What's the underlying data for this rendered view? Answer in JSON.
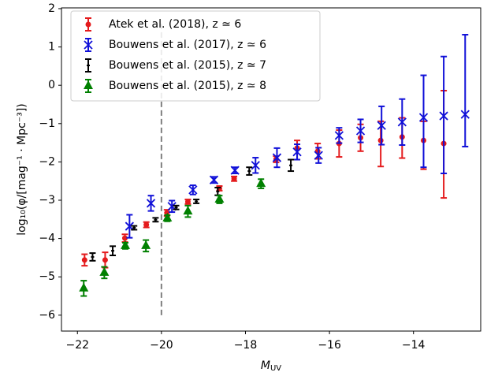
{
  "chart_data": {
    "type": "errorbar",
    "x_label": {
      "main": "M",
      "sub": "UV"
    },
    "y_label": "log₁₀(φ/[mag⁻¹ · Mpc⁻³])",
    "xlim": [
      -22.38,
      -12.4
    ],
    "ylim": [
      -6.415,
      2.02
    ],
    "xticks": [
      {
        "value": -22,
        "label": "−22"
      },
      {
        "value": -20,
        "label": "−20"
      },
      {
        "value": -18,
        "label": "−18"
      },
      {
        "value": -16,
        "label": "−16"
      },
      {
        "value": -14,
        "label": "−14"
      }
    ],
    "yticks": [
      {
        "value": -6,
        "label": "−6"
      },
      {
        "value": -5,
        "label": "−5"
      },
      {
        "value": -4,
        "label": "−4"
      },
      {
        "value": -3,
        "label": "−3"
      },
      {
        "value": -2,
        "label": "−2"
      },
      {
        "value": -1,
        "label": "−1"
      },
      0,
      1,
      2
    ],
    "vline": {
      "x": -20,
      "y": [
        -6,
        1.6
      ],
      "color": "#808080"
    },
    "legend": "upper left",
    "series": [
      {
        "name": "Atek et al. (2018), z ≃ 6",
        "color": "#e41a1c",
        "marker": "circle",
        "x": [
          -21.83,
          -21.34,
          -20.87,
          -20.36,
          -19.87,
          -19.37,
          -18.62,
          -18.27,
          -17.27,
          -16.77,
          -16.28,
          -15.77,
          -15.26,
          -14.78,
          -14.27,
          -13.76,
          -13.28
        ],
        "values": [
          -4.56,
          -4.56,
          -3.99,
          -3.64,
          -3.33,
          -3.04,
          -2.69,
          -2.44,
          -1.93,
          -1.64,
          -1.72,
          -1.52,
          -1.37,
          -1.44,
          -1.35,
          -1.44,
          -1.52
        ],
        "err_low": [
          0.15,
          0.2,
          0.1,
          0.07,
          0.08,
          0.06,
          0.06,
          0.06,
          0.08,
          0.3,
          0.2,
          0.35,
          0.35,
          0.68,
          0.55,
          0.75,
          1.42
        ],
        "err_high": [
          0.15,
          0.2,
          0.1,
          0.07,
          0.08,
          0.06,
          0.06,
          0.06,
          0.08,
          0.2,
          0.2,
          0.35,
          0.35,
          0.5,
          0.5,
          0.5,
          1.38
        ]
      },
      {
        "name": "Bouwens et al. (2017), z ≃ 6",
        "color": "#1010d8",
        "marker": "x",
        "x": [
          -20.76,
          -20.25,
          -19.75,
          -19.25,
          -18.75,
          -18.25,
          -17.76,
          -17.25,
          -16.77,
          -16.26,
          -15.77,
          -15.26,
          -14.76,
          -14.27,
          -13.76,
          -13.28,
          -12.77
        ],
        "values": [
          -3.68,
          -3.08,
          -3.16,
          -2.73,
          -2.47,
          -2.22,
          -2.09,
          -1.89,
          -1.74,
          -1.83,
          -1.31,
          -1.19,
          -1.05,
          -0.96,
          -0.84,
          -0.8,
          -0.76
        ],
        "err_low": [
          0.3,
          0.2,
          0.15,
          0.12,
          0.08,
          0.08,
          0.2,
          0.25,
          0.2,
          0.2,
          0.2,
          0.3,
          0.5,
          0.6,
          1.3,
          1.5,
          0.84
        ],
        "err_high": [
          0.3,
          0.2,
          0.15,
          0.12,
          0.08,
          0.08,
          0.2,
          0.25,
          0.2,
          0.2,
          0.2,
          0.3,
          0.5,
          0.6,
          1.1,
          1.55,
          2.08
        ]
      },
      {
        "name": "Bouwens et al. (2015), z ≃ 7",
        "color": "#000000",
        "marker": "dash",
        "x": [
          -21.64,
          -21.16,
          -20.65,
          -20.14,
          -19.65,
          -19.17,
          -18.66,
          -17.91,
          -16.92
        ],
        "values": [
          -4.48,
          -4.32,
          -3.72,
          -3.51,
          -3.19,
          -3.03,
          -2.77,
          -2.24,
          -2.09
        ],
        "err_low": [
          0.1,
          0.12,
          0.05,
          0.05,
          0.05,
          0.05,
          0.1,
          0.1,
          0.15
        ],
        "err_high": [
          0.1,
          0.12,
          0.05,
          0.05,
          0.05,
          0.05,
          0.1,
          0.1,
          0.15
        ]
      },
      {
        "name": "Bouwens et al. (2015), z ≃ 8",
        "color": "#008000",
        "marker": "triangle",
        "x": [
          -21.85,
          -21.36,
          -20.86,
          -20.37,
          -19.86,
          -19.37,
          -18.62,
          -17.63
        ],
        "values": [
          -5.3,
          -4.89,
          -4.19,
          -4.19,
          -3.47,
          -3.29,
          -2.98,
          -2.57
        ],
        "err_low": [
          0.2,
          0.15,
          0.08,
          0.15,
          0.08,
          0.15,
          0.1,
          0.12
        ],
        "err_high": [
          0.2,
          0.15,
          0.08,
          0.15,
          0.08,
          0.15,
          0.1,
          0.12
        ]
      }
    ]
  }
}
